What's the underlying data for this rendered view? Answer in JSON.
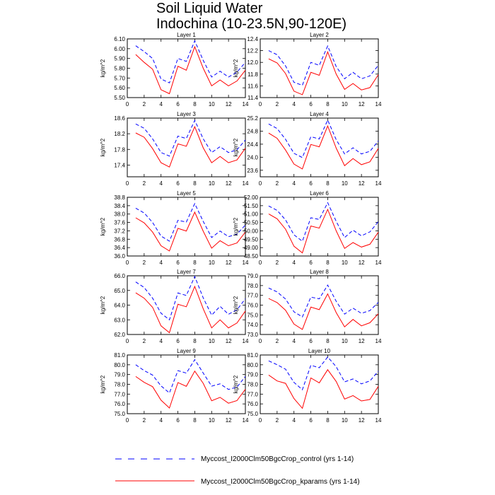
{
  "figure": {
    "title_line1": "Soil Liquid Water",
    "title_line2": "Indochina (10-23.5N,90-120E)"
  },
  "legend": [
    {
      "label": "Myccost_I2000Clm50BgcCrop_control (yrs 1-14)",
      "color": "#0000ff",
      "dash": "dashed"
    },
    {
      "label": "Myccost_I2000Clm50BgcCrop_kparams (yrs 1-14)",
      "color": "#ff0000",
      "dash": "solid"
    }
  ],
  "chart_data": [
    {
      "type": "line",
      "title": "Layer 1",
      "ylabel": "kg/m^2",
      "xlim": [
        0,
        14
      ],
      "x_ticks": [
        0,
        2,
        4,
        6,
        8,
        10,
        12,
        14
      ],
      "ylim": [
        5.5,
        6.1
      ],
      "y_ticks": [
        "5.50",
        "5.60",
        "5.70",
        "5.80",
        "5.90",
        "6.00",
        "6.10"
      ],
      "x": [
        1,
        2,
        3,
        4,
        5,
        6,
        7,
        8,
        9,
        10,
        11,
        12,
        13,
        14
      ],
      "series": [
        {
          "name": "Myccost_I2000Clm50BgcCrop_control (yrs 1-14)",
          "values": [
            6.03,
            5.97,
            5.9,
            5.69,
            5.65,
            5.9,
            5.87,
            6.08,
            5.88,
            5.71,
            5.77,
            5.71,
            5.76,
            5.86
          ]
        },
        {
          "name": "Myccost_I2000Clm50BgcCrop_kparams (yrs 1-14)",
          "values": [
            5.94,
            5.86,
            5.79,
            5.58,
            5.54,
            5.82,
            5.78,
            6.02,
            5.8,
            5.62,
            5.68,
            5.62,
            5.67,
            5.78
          ]
        }
      ]
    },
    {
      "type": "line",
      "title": "Layer 2",
      "ylabel": "kg/m^2",
      "xlim": [
        0,
        14
      ],
      "x_ticks": [
        0,
        2,
        4,
        6,
        8,
        10,
        12,
        14
      ],
      "ylim": [
        11.4,
        12.4
      ],
      "y_ticks": [
        "11.4",
        "11.6",
        "11.8",
        "12.0",
        "12.2",
        "12.4"
      ],
      "x": [
        1,
        2,
        3,
        4,
        5,
        6,
        7,
        8,
        9,
        10,
        11,
        12,
        13,
        14
      ],
      "series": [
        {
          "name": "Myccost_I2000Clm50BgcCrop_control (yrs 1-14)",
          "values": [
            12.2,
            12.13,
            11.94,
            11.66,
            11.61,
            12.0,
            11.95,
            12.28,
            11.93,
            11.72,
            11.83,
            11.72,
            11.77,
            11.95
          ]
        },
        {
          "name": "Myccost_I2000Clm50BgcCrop_kparams (yrs 1-14)",
          "values": [
            12.06,
            11.99,
            11.81,
            11.51,
            11.45,
            11.83,
            11.78,
            12.18,
            11.8,
            11.54,
            11.64,
            11.53,
            11.57,
            11.79
          ]
        }
      ]
    },
    {
      "type": "line",
      "title": "Layer 3",
      "ylabel": "kg/m^2",
      "xlim": [
        0,
        14
      ],
      "x_ticks": [
        0,
        2,
        4,
        6,
        8,
        10,
        12,
        14
      ],
      "ylim": [
        17.1,
        18.6
      ],
      "y_ticks": [
        "17.4",
        "17.8",
        "18.2",
        "18.6"
      ],
      "x": [
        1,
        2,
        3,
        4,
        5,
        6,
        7,
        8,
        9,
        10,
        11,
        12,
        13,
        14
      ],
      "series": [
        {
          "name": "Myccost_I2000Clm50BgcCrop_control (yrs 1-14)",
          "values": [
            18.45,
            18.34,
            18.07,
            17.72,
            17.63,
            18.14,
            18.08,
            18.54,
            18.07,
            17.72,
            17.87,
            17.72,
            17.79,
            18.04
          ]
        },
        {
          "name": "Myccost_I2000Clm50BgcCrop_kparams (yrs 1-14)",
          "values": [
            18.22,
            18.11,
            17.82,
            17.46,
            17.35,
            17.94,
            17.88,
            18.38,
            17.84,
            17.46,
            17.62,
            17.46,
            17.53,
            17.83
          ]
        }
      ]
    },
    {
      "type": "line",
      "title": "Layer 4",
      "ylabel": "kg/m^2",
      "xlim": [
        0,
        14
      ],
      "x_ticks": [
        0,
        2,
        4,
        6,
        8,
        10,
        12,
        14
      ],
      "ylim": [
        23.4,
        25.2
      ],
      "y_ticks": [
        "23.6",
        "24.0",
        "24.4",
        "24.8",
        "25.2"
      ],
      "x": [
        1,
        2,
        3,
        4,
        5,
        6,
        7,
        8,
        9,
        10,
        11,
        12,
        13,
        14
      ],
      "series": [
        {
          "name": "Myccost_I2000Clm50BgcCrop_control (yrs 1-14)",
          "values": [
            25.02,
            24.88,
            24.55,
            24.12,
            23.99,
            24.63,
            24.56,
            25.14,
            24.54,
            24.1,
            24.29,
            24.1,
            24.18,
            24.5
          ]
        },
        {
          "name": "Myccost_I2000Clm50BgcCrop_kparams (yrs 1-14)",
          "values": [
            24.74,
            24.58,
            24.22,
            23.79,
            23.64,
            24.39,
            24.32,
            24.96,
            24.28,
            23.74,
            23.96,
            23.77,
            23.86,
            24.27
          ]
        }
      ]
    },
    {
      "type": "line",
      "title": "Layer 5",
      "ylabel": "kg/m^2",
      "xlim": [
        0,
        14
      ],
      "x_ticks": [
        0,
        2,
        4,
        6,
        8,
        10,
        12,
        14
      ],
      "ylim": [
        36.0,
        38.8
      ],
      "y_ticks": [
        "36.0",
        "36.4",
        "36.8",
        "37.2",
        "37.6",
        "38.0",
        "38.4",
        "38.8"
      ],
      "x": [
        1,
        2,
        3,
        4,
        5,
        6,
        7,
        8,
        9,
        10,
        11,
        12,
        13,
        14
      ],
      "series": [
        {
          "name": "Myccost_I2000Clm50BgcCrop_control (yrs 1-14)",
          "values": [
            38.28,
            38.05,
            37.6,
            36.95,
            36.71,
            37.7,
            37.62,
            38.5,
            37.65,
            36.88,
            37.19,
            36.92,
            37.04,
            37.48
          ]
        },
        {
          "name": "Myccost_I2000Clm50BgcCrop_kparams (yrs 1-14)",
          "values": [
            37.82,
            37.58,
            37.14,
            36.49,
            36.24,
            37.32,
            37.19,
            38.09,
            37.18,
            36.37,
            36.73,
            36.49,
            36.62,
            37.14
          ]
        }
      ]
    },
    {
      "type": "line",
      "title": "Layer 6",
      "ylabel": "kg/m^2",
      "xlim": [
        0,
        14
      ],
      "x_ticks": [
        0,
        2,
        4,
        6,
        8,
        10,
        12,
        14
      ],
      "ylim": [
        48.5,
        52.0
      ],
      "y_ticks": [
        "48.50",
        "49.00",
        "49.50",
        "50.00",
        "50.50",
        "51.00",
        "51.50",
        "52.00"
      ],
      "x": [
        1,
        2,
        3,
        4,
        5,
        6,
        7,
        8,
        9,
        10,
        11,
        12,
        13,
        14
      ],
      "series": [
        {
          "name": "Myccost_I2000Clm50BgcCrop_control (yrs 1-14)",
          "values": [
            51.48,
            51.22,
            50.65,
            49.76,
            49.38,
            50.78,
            50.68,
            51.68,
            50.57,
            49.6,
            50.04,
            49.7,
            49.94,
            50.55
          ]
        },
        {
          "name": "Myccost_I2000Clm50BgcCrop_kparams (yrs 1-14)",
          "values": [
            51.01,
            50.72,
            50.1,
            49.08,
            48.68,
            50.29,
            50.16,
            51.28,
            50.0,
            48.95,
            49.3,
            49.03,
            49.2,
            49.92
          ]
        }
      ]
    },
    {
      "type": "line",
      "title": "Layer 7",
      "ylabel": "kg/m^2",
      "xlim": [
        0,
        14
      ],
      "x_ticks": [
        0,
        2,
        4,
        6,
        8,
        10,
        12,
        14
      ],
      "ylim": [
        62.0,
        66.0
      ],
      "y_ticks": [
        "62.0",
        "63.0",
        "64.0",
        "65.0",
        "66.0"
      ],
      "x": [
        1,
        2,
        3,
        4,
        5,
        6,
        7,
        8,
        9,
        10,
        11,
        12,
        13,
        14
      ],
      "series": [
        {
          "name": "Myccost_I2000Clm50BgcCrop_control (yrs 1-14)",
          "values": [
            65.58,
            65.2,
            64.47,
            63.45,
            63.0,
            64.83,
            64.66,
            65.95,
            64.49,
            63.32,
            63.92,
            63.38,
            63.68,
            64.44
          ]
        },
        {
          "name": "Myccost_I2000Clm50BgcCrop_kparams (yrs 1-14)",
          "values": [
            64.84,
            64.47,
            63.85,
            62.59,
            62.12,
            64.06,
            63.89,
            65.27,
            63.75,
            62.45,
            63.0,
            62.45,
            62.78,
            63.6
          ]
        }
      ]
    },
    {
      "type": "line",
      "title": "Layer 8",
      "ylabel": "kg/m^2",
      "xlim": [
        0,
        14
      ],
      "x_ticks": [
        0,
        2,
        4,
        6,
        8,
        10,
        12,
        14
      ],
      "ylim": [
        73.0,
        79.0
      ],
      "y_ticks": [
        "73.0",
        "74.0",
        "75.0",
        "76.0",
        "77.0",
        "78.0",
        "79.0"
      ],
      "x": [
        1,
        2,
        3,
        4,
        5,
        6,
        7,
        8,
        9,
        10,
        11,
        12,
        13,
        14
      ],
      "series": [
        {
          "name": "Myccost_I2000Clm50BgcCrop_control (yrs 1-14)",
          "values": [
            77.75,
            77.35,
            76.62,
            75.32,
            74.79,
            76.82,
            76.64,
            78.05,
            76.4,
            75.08,
            75.69,
            75.16,
            75.44,
            76.28
          ]
        },
        {
          "name": "Myccost_I2000Clm50BgcCrop_kparams (yrs 1-14)",
          "values": [
            76.68,
            76.26,
            75.48,
            74.06,
            73.51,
            75.8,
            75.54,
            77.15,
            75.24,
            73.78,
            74.54,
            73.88,
            74.2,
            75.12
          ]
        }
      ]
    },
    {
      "type": "line",
      "title": "Layer 9",
      "ylabel": "kg/m^2",
      "xlim": [
        0,
        14
      ],
      "x_ticks": [
        0,
        2,
        4,
        6,
        8,
        10,
        12,
        14
      ],
      "ylim": [
        75.0,
        81.0
      ],
      "y_ticks": [
        "75.0",
        "76.0",
        "77.0",
        "78.0",
        "79.0",
        "80.0",
        "81.0"
      ],
      "x": [
        1,
        2,
        3,
        4,
        5,
        6,
        7,
        8,
        9,
        10,
        11,
        12,
        13,
        14
      ],
      "series": [
        {
          "name": "Myccost_I2000Clm50BgcCrop_control (yrs 1-14)",
          "values": [
            80.0,
            79.4,
            78.95,
            77.84,
            77.12,
            79.4,
            79.15,
            80.52,
            79.15,
            77.81,
            78.05,
            77.48,
            77.72,
            78.8
          ]
        },
        {
          "name": "Myccost_I2000Clm50BgcCrop_kparams (yrs 1-14)",
          "values": [
            78.8,
            78.2,
            77.76,
            76.38,
            75.58,
            78.18,
            77.8,
            79.35,
            78.1,
            76.32,
            76.67,
            76.07,
            76.34,
            77.5
          ]
        }
      ]
    },
    {
      "type": "line",
      "title": "Layer 10",
      "ylabel": "kg/m^2",
      "xlim": [
        0,
        14
      ],
      "x_ticks": [
        0,
        2,
        4,
        6,
        8,
        10,
        12,
        14
      ],
      "ylim": [
        75.0,
        81.0
      ],
      "y_ticks": [
        "75.0",
        "76.0",
        "77.0",
        "78.0",
        "79.0",
        "80.0",
        "81.0"
      ],
      "x": [
        1,
        2,
        3,
        4,
        5,
        6,
        7,
        8,
        9,
        10,
        11,
        12,
        13,
        14
      ],
      "series": [
        {
          "name": "Myccost_I2000Clm50BgcCrop_control (yrs 1-14)",
          "values": [
            80.4,
            80.0,
            79.55,
            78.2,
            77.45,
            79.95,
            79.7,
            80.8,
            79.8,
            78.25,
            78.55,
            78.05,
            78.35,
            79.35
          ]
        },
        {
          "name": "Myccost_I2000Clm50BgcCrop_kparams (yrs 1-14)",
          "values": [
            78.95,
            78.35,
            78.1,
            76.55,
            75.55,
            78.65,
            78.15,
            79.5,
            78.3,
            76.5,
            76.85,
            76.3,
            76.45,
            77.8
          ]
        }
      ]
    }
  ]
}
